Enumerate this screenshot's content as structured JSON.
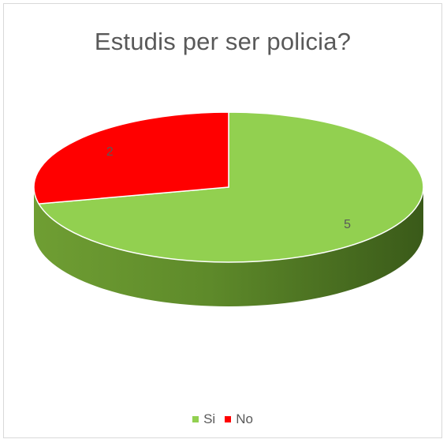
{
  "chart_data": {
    "type": "pie",
    "style": "3d",
    "title": "Estudis per ser policia?",
    "categories": [
      "Si",
      "No"
    ],
    "values": [
      5,
      2
    ],
    "colors": [
      "#92d050",
      "#ff0000"
    ],
    "data_labels": [
      "5",
      "2"
    ],
    "legend": {
      "position": "bottom",
      "entries": [
        "Si",
        "No"
      ]
    }
  }
}
